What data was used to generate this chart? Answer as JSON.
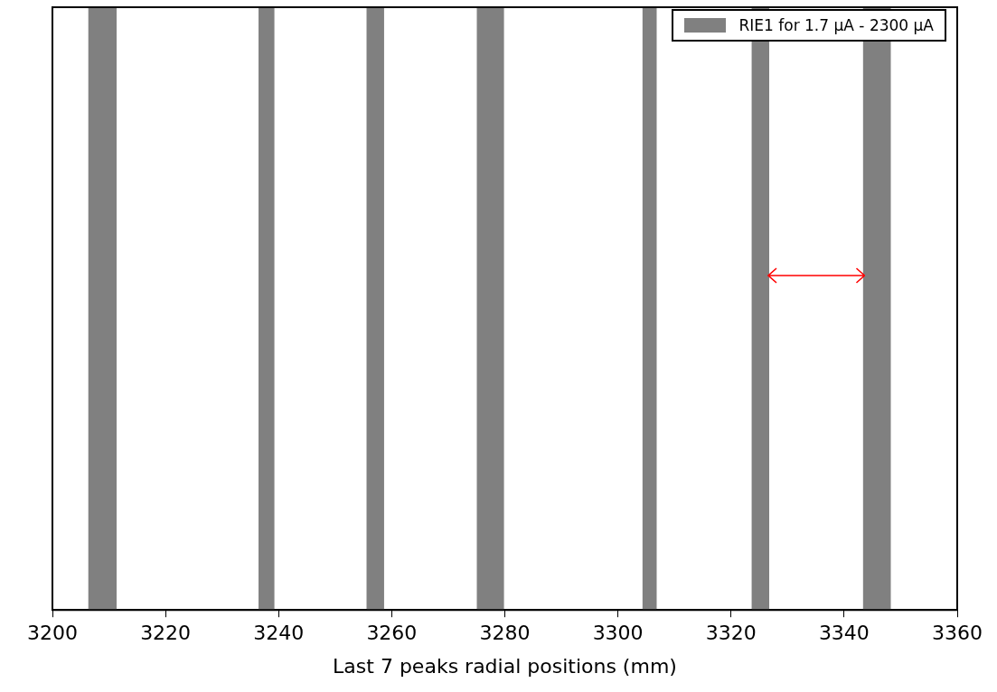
{
  "chart_data": {
    "type": "bar",
    "orientation": "horizontal",
    "categories": [
      null
    ],
    "xlabel": "Last 7 peaks radial positions (mm)",
    "xlim": [
      3200,
      3360
    ],
    "xticks": [
      3200,
      3220,
      3240,
      3260,
      3280,
      3300,
      3320,
      3340,
      3360
    ],
    "tick_labels": "x",
    "legend": "top right",
    "series": [
      {
        "name": "RIE1 for 1.7 μA - 2300 μA",
        "color": "#808080",
        "base": [
          3206.4
        ],
        "values": [
          4.9
        ]
      },
      {
        "color": "#808080",
        "base": [
          3236.5
        ],
        "values": [
          2.7
        ]
      },
      {
        "color": "#808080",
        "base": [
          3255.6
        ],
        "values": [
          3.0
        ]
      },
      {
        "color": "#808080",
        "base": [
          3275.1
        ],
        "values": [
          4.7
        ]
      },
      {
        "color": "#808080",
        "base": [
          3304.4
        ],
        "values": [
          2.4
        ]
      },
      {
        "color": "#808080",
        "base": [
          3323.7
        ],
        "values": [
          3.0
        ]
      },
      {
        "color": "#808080",
        "base": [
          3343.4
        ],
        "values": [
          4.8
        ]
      }
    ]
  }
}
